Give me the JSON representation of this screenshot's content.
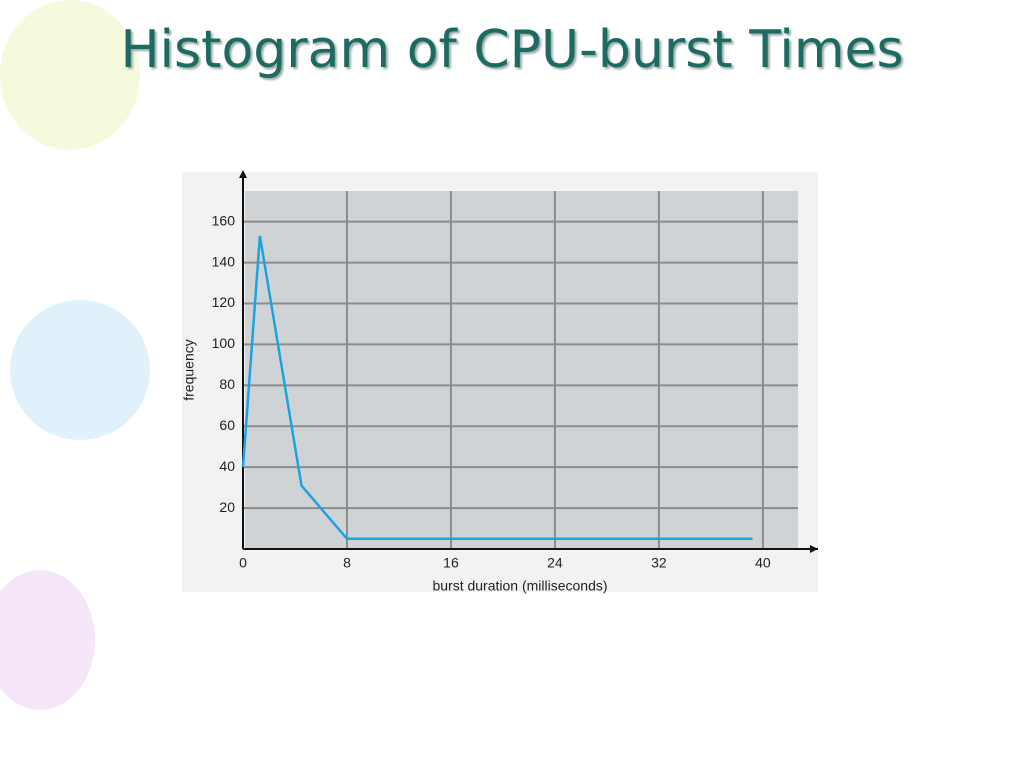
{
  "chart_data": {
    "type": "line",
    "title": "Histogram of CPU-burst Times",
    "x_label": "burst duration (milliseconds)",
    "y_label": "frequency",
    "x": [
      0,
      1.3,
      4.5,
      8,
      39.2
    ],
    "series": [
      {
        "name": "frequency",
        "color": "#1aa3e0",
        "values": [
          40,
          153,
          31,
          5,
          5
        ]
      }
    ],
    "xlim": [
      0,
      42.7
    ],
    "ylim": [
      0,
      175
    ],
    "xticks": [
      0,
      8,
      16,
      24,
      32,
      40
    ],
    "yticks": [
      20,
      40,
      60,
      80,
      100,
      120,
      140,
      160
    ],
    "grid": true
  }
}
